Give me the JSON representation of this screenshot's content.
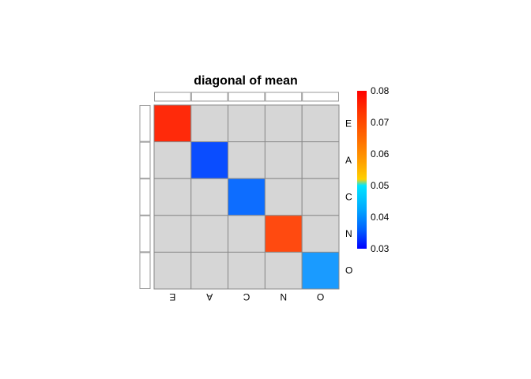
{
  "chart_data": {
    "type": "heatmap",
    "title": "diagonal of mean",
    "rows": [
      "E",
      "A",
      "C",
      "N",
      "O"
    ],
    "columns": [
      "E",
      "A",
      "C",
      "N",
      "O"
    ],
    "cells": [
      [
        "diag",
        "off",
        "off",
        "off",
        "off"
      ],
      [
        "off",
        "diag",
        "off",
        "off",
        "off"
      ],
      [
        "off",
        "off",
        "diag",
        "off",
        "off"
      ],
      [
        "off",
        "off",
        "off",
        "diag",
        "off"
      ],
      [
        "off",
        "off",
        "off",
        "off",
        "diag"
      ]
    ],
    "diagonal_values": [
      0.077,
      0.039,
      0.042,
      0.074,
      0.047
    ],
    "off_diagonal_color": "#d6d6d6",
    "grid_color": "#8a8a8a",
    "cell_colors": {
      "E": "#ff2a0a",
      "A": "#0a4dff",
      "C": "#0d6dff",
      "N": "#ff4a10",
      "O": "#1a9bff"
    },
    "colorbar": {
      "range": [
        0.03,
        0.08
      ],
      "ticks": [
        "0.08",
        "0.07",
        "0.06",
        "0.05",
        "0.04",
        "0.03"
      ],
      "colors_top_to_bottom": [
        "#ff0000",
        "#ff3000",
        "#ff6a00",
        "#ffa000",
        "#ffd000",
        "#00e5ff",
        "#00a8ff",
        "#0060ff",
        "#0000ff"
      ]
    },
    "row_labels_position": "right",
    "column_labels_position": "bottom",
    "column_labels_rotation": "rotated 180 degrees",
    "row_annotation_bar": "left, empty",
    "column_annotation_bar": "top, empty"
  }
}
